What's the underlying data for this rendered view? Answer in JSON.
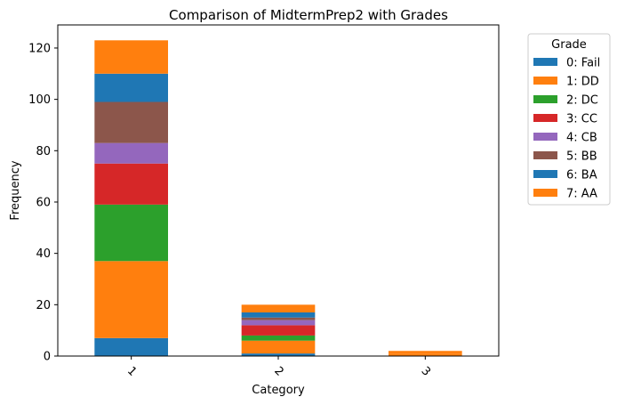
{
  "chart_data": {
    "type": "bar",
    "stacked": true,
    "title": "Comparison of MidtermPrep2 with Grades",
    "xlabel": "Category",
    "ylabel": "Frequency",
    "categories": [
      "1",
      "2",
      "3"
    ],
    "ylim": [
      0,
      129
    ],
    "yticks": [
      0,
      20,
      40,
      60,
      80,
      100,
      120
    ],
    "grid": false,
    "legend": {
      "title": "Grade",
      "placement": "outside-right"
    },
    "series": [
      {
        "name": "0: Fail",
        "color": "#1f77b4",
        "values": [
          7,
          1,
          0
        ]
      },
      {
        "name": "1: DD",
        "color": "#ff7f0e",
        "values": [
          30,
          5,
          1
        ]
      },
      {
        "name": "2: DC",
        "color": "#2ca02c",
        "values": [
          22,
          2,
          0
        ]
      },
      {
        "name": "3: CC",
        "color": "#d62728",
        "values": [
          16,
          4,
          0
        ]
      },
      {
        "name": "4: CB",
        "color": "#9467bd",
        "values": [
          8,
          2,
          0
        ]
      },
      {
        "name": "5: BB",
        "color": "#8c564b",
        "values": [
          16,
          1,
          0
        ]
      },
      {
        "name": "6: BA",
        "color": "#1f77b4",
        "values": [
          11,
          2,
          0
        ]
      },
      {
        "name": "7: AA",
        "color": "#ff7f0e",
        "values": [
          13,
          3,
          1
        ]
      }
    ]
  }
}
